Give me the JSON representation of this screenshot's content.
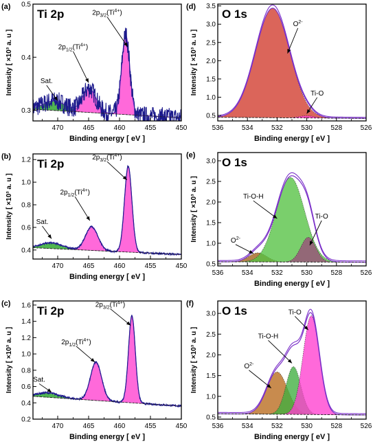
{
  "figure": {
    "title": ""
  },
  "colors": {
    "raw": "#1c1a8c",
    "envelope": "#7a2fc8",
    "background": "#222222",
    "ti_main": "#ff3fd0",
    "ti_sat": "#1fa21f",
    "o2_d": "#d13a2c",
    "tioh": "#55c243",
    "o2_e": "#a06018",
    "tio_e": "#9a4a7a",
    "o2_f": "#b86a1c",
    "tioh_f": "#3fae3f",
    "tio_f": "#ff3fd0"
  },
  "chart_data": [
    {
      "id": "a",
      "type": "area",
      "panel_label": "(a)",
      "title": "Ti 2p",
      "xlabel": "Binding energy [ eV ]",
      "ylabel": "Intensity [ ×10³ a. u ]",
      "xlim": [
        474,
        450
      ],
      "ylim": [
        0.28,
        0.5
      ],
      "xticks": [
        470,
        465,
        460,
        455,
        450
      ],
      "yticks": [
        0.3,
        0.4,
        0.5
      ],
      "ytick_labels": [
        "0.3",
        "0.4",
        "0.5"
      ],
      "components": [
        {
          "name": "Sat.",
          "color_key": "ti_sat",
          "center": 470.5,
          "height": 0.018,
          "width": 1.8
        },
        {
          "name": "2p1/2(Ti4+)",
          "color_key": "ti_main",
          "center": 464.9,
          "height": 0.045,
          "width": 1.1
        },
        {
          "name": "2p3/2(Ti4+)",
          "color_key": "ti_main",
          "center": 459.0,
          "height": 0.15,
          "width": 0.65
        }
      ],
      "background_curve": {
        "x": [
          474,
          450
        ],
        "y": [
          0.302,
          0.286
        ]
      },
      "noise": 0.018,
      "annotations": [
        {
          "text": "Sat.",
          "tx": 471.8,
          "ty": 0.351,
          "ax": 470.0,
          "ay": 0.318
        },
        {
          "text": "2p",
          "sub": "1/2",
          "tail": "(Ti",
          "sup": "4+",
          "end": ")",
          "tx": 467.5,
          "ty": 0.415,
          "ax": 465.0,
          "ay": 0.352
        },
        {
          "text": "2p",
          "sub": "3/2",
          "tail": "(Ti",
          "sup": "4+",
          "end": ")",
          "tx": 462.0,
          "ty": 0.48,
          "ax": 458.7,
          "ay": 0.42
        }
      ]
    },
    {
      "id": "b",
      "type": "area",
      "panel_label": "(b)",
      "title": "Ti 2p",
      "xlabel": "Binding energy [ eV ]",
      "ylabel": "Intensity [ ×10³ a. u ]",
      "xlim": [
        474,
        450
      ],
      "ylim": [
        0.32,
        1.25
      ],
      "xticks": [
        470,
        465,
        460,
        455,
        450
      ],
      "yticks": [
        0.4,
        0.6,
        0.8,
        1.0,
        1.2
      ],
      "ytick_labels": [
        "0.4",
        "0.6",
        "0.8",
        "1.0",
        "1.2"
      ],
      "components": [
        {
          "name": "Sat.",
          "color_key": "ti_sat",
          "center": 471.0,
          "height": 0.05,
          "width": 1.8
        },
        {
          "name": "2p1/2(Ti4+)",
          "color_key": "ti_main",
          "center": 464.5,
          "height": 0.21,
          "width": 1.0
        },
        {
          "name": "2p3/2(Ti4+)",
          "color_key": "ti_main",
          "center": 458.6,
          "height": 0.76,
          "width": 0.6
        }
      ],
      "background_curve": {
        "x": [
          474,
          450
        ],
        "y": [
          0.42,
          0.36
        ]
      },
      "noise": 0.008,
      "annotations": [
        {
          "text": "Sat.",
          "tx": 472.5,
          "ty": 0.63,
          "ax": 471.0,
          "ay": 0.5
        },
        {
          "text": "2p",
          "sub": "1/2",
          "tail": "(Ti",
          "sup": "4+",
          "end": ")",
          "tx": 467.2,
          "ty": 0.89,
          "ax": 464.8,
          "ay": 0.66
        },
        {
          "text": "2p",
          "sub": "3/2",
          "tail": "(Ti",
          "sup": "4+",
          "end": ")",
          "tx": 462.0,
          "ty": 1.2,
          "ax": 458.8,
          "ay": 1.02
        }
      ]
    },
    {
      "id": "c",
      "type": "area",
      "panel_label": "(c)",
      "title": "Ti 2p",
      "xlabel": "Binding energy [ eV ]",
      "ylabel": "Intensity [ ×10³ a. u ]",
      "xlim": [
        474,
        450
      ],
      "ylim": [
        0.2,
        1.65
      ],
      "xticks": [
        470,
        465,
        460,
        455,
        450
      ],
      "yticks": [
        0.2,
        0.4,
        0.6,
        0.8,
        1.0,
        1.2,
        1.4,
        1.6
      ],
      "ytick_labels": [
        "0.2",
        "0.4",
        "0.6",
        "0.8",
        "1.0",
        "1.2",
        "1.4",
        "1.6"
      ],
      "components": [
        {
          "name": "Sat.",
          "color_key": "ti_sat",
          "center": 471.5,
          "height": 0.055,
          "width": 1.8
        },
        {
          "name": "2p1/2(Ti4+)",
          "color_key": "ti_main",
          "center": 463.8,
          "height": 0.47,
          "width": 0.9
        },
        {
          "name": "2p3/2(Ti4+)",
          "color_key": "ti_main",
          "center": 458.0,
          "height": 1.07,
          "width": 0.55
        }
      ],
      "background_curve": {
        "x": [
          474,
          450
        ],
        "y": [
          0.48,
          0.36
        ]
      },
      "noise": 0.012,
      "annotations": [
        {
          "text": "Sat.",
          "tx": 473.0,
          "ty": 0.66,
          "ax": 471.0,
          "ay": 0.53
        },
        {
          "text": "2p",
          "sub": "1/2",
          "tail": "(Ti",
          "sup": "4+",
          "end": ")",
          "tx": 467.0,
          "ty": 1.12,
          "ax": 464.0,
          "ay": 0.9
        },
        {
          "text": "2p",
          "sub": "3/2",
          "tail": "(Ti",
          "sup": "4+",
          "end": ")",
          "tx": 461.5,
          "ty": 1.58,
          "ax": 458.2,
          "ay": 1.35
        }
      ]
    },
    {
      "id": "d",
      "type": "area",
      "panel_label": "(d)",
      "title": "O 1s",
      "xlabel": "Binding energy [ eV ]",
      "ylabel": "Intensity [ ×10³ a. u ]",
      "xlim": [
        536,
        526
      ],
      "ylim": [
        0.35,
        3.55
      ],
      "xticks": [
        536,
        534,
        532,
        530,
        528,
        526
      ],
      "yticks": [
        0.5,
        1.0,
        1.5,
        2.0,
        2.5,
        3.0,
        3.5
      ],
      "ytick_labels": [
        "0.5",
        "1.0",
        "1.5",
        "2.0",
        "2.5",
        "3.0",
        "3.5"
      ],
      "components": [
        {
          "name": "O2-",
          "color_key": "o2_d",
          "center": 532.3,
          "height": 3.0,
          "width": 1.15
        },
        {
          "name": "Ti-O",
          "color_key": "ti_main",
          "center": 530.0,
          "height": 0.06,
          "width": 0.5
        }
      ],
      "background_curve": {
        "x": [
          536,
          526
        ],
        "y": [
          0.45,
          0.42
        ]
      },
      "noise": 0.0,
      "annotations": [
        {
          "text": "O",
          "sup": "2-",
          "tx": 530.6,
          "ty": 2.95,
          "ax": 531.3,
          "ay": 2.2
        },
        {
          "text": "Ti-O",
          "tx": 529.3,
          "ty": 1.05,
          "ax": 530.0,
          "ay": 0.55
        }
      ]
    },
    {
      "id": "e",
      "type": "area",
      "panel_label": "(e)",
      "title": "O 1s",
      "xlabel": "Binding energy [ eV ]",
      "ylabel": "Intensity [ ×10³ a. u ]",
      "xlim": [
        536,
        526
      ],
      "ylim": [
        0.45,
        3.2
      ],
      "xticks": [
        536,
        534,
        532,
        530,
        528,
        526
      ],
      "yticks": [
        0.5,
        1.0,
        1.5,
        2.0,
        2.5,
        3.0
      ],
      "ytick_labels": [
        "0.5",
        "1.0",
        "1.5",
        "2.0",
        "2.5",
        "3.0"
      ],
      "components": [
        {
          "name": "O2-",
          "color_key": "o2_e",
          "center": 533.3,
          "height": 0.22,
          "width": 0.6
        },
        {
          "name": "Ti-O-H",
          "color_key": "tioh",
          "center": 531.1,
          "height": 2.05,
          "width": 0.95
        },
        {
          "name": "Ti-O",
          "color_key": "tio_e",
          "center": 529.9,
          "height": 0.6,
          "width": 0.5
        }
      ],
      "background_curve": {
        "x": [
          536,
          526
        ],
        "y": [
          0.55,
          0.54
        ]
      },
      "noise": 0.0,
      "annotations": [
        {
          "text": "Ti-O-H",
          "tx": 533.6,
          "ty": 2.08,
          "ax": 532.0,
          "ay": 1.6
        },
        {
          "text": "Ti-O",
          "tx": 529.0,
          "ty": 1.6,
          "ax": 529.8,
          "ay": 0.95
        },
        {
          "text": "O",
          "sup": "2-",
          "tx": 534.8,
          "ty": 1.02,
          "ax": 533.6,
          "ay": 0.75
        }
      ]
    },
    {
      "id": "f",
      "type": "area",
      "panel_label": "(f)",
      "title": "O 1s",
      "xlabel": "Binding energy [ eV ]",
      "ylabel": "Intensity [ ×10³ a. u ]",
      "xlim": [
        536,
        526
      ],
      "ylim": [
        0.45,
        3.3
      ],
      "xticks": [
        536,
        534,
        532,
        530,
        528,
        526
      ],
      "yticks": [
        0.5,
        1.0,
        1.5,
        2.0,
        2.5,
        3.0
      ],
      "ytick_labels": [
        "0.5",
        "1.0",
        "1.5",
        "2.0",
        "2.5",
        "3.0"
      ],
      "components": [
        {
          "name": "O2-",
          "color_key": "o2_f",
          "center": 532.0,
          "height": 1.02,
          "width": 0.7
        },
        {
          "name": "Ti-O-H",
          "color_key": "tioh_f",
          "center": 530.9,
          "height": 1.15,
          "width": 0.5
        },
        {
          "name": "Ti-O",
          "color_key": "tio_f",
          "center": 529.7,
          "height": 2.38,
          "width": 0.55
        }
      ],
      "background_curve": {
        "x": [
          536,
          526
        ],
        "y": [
          0.58,
          0.55
        ]
      },
      "noise": 0.0,
      "annotations": [
        {
          "text": "Ti-O",
          "tx": 530.8,
          "ty": 2.98,
          "ax": 529.9,
          "ay": 2.6
        },
        {
          "text": "Ti-O-H",
          "tx": 532.6,
          "ty": 2.4,
          "ax": 531.0,
          "ay": 1.8
        },
        {
          "text": "O",
          "sup": "2-",
          "tx": 533.9,
          "ty": 1.68,
          "ax": 532.4,
          "ay": 1.2
        }
      ]
    }
  ]
}
